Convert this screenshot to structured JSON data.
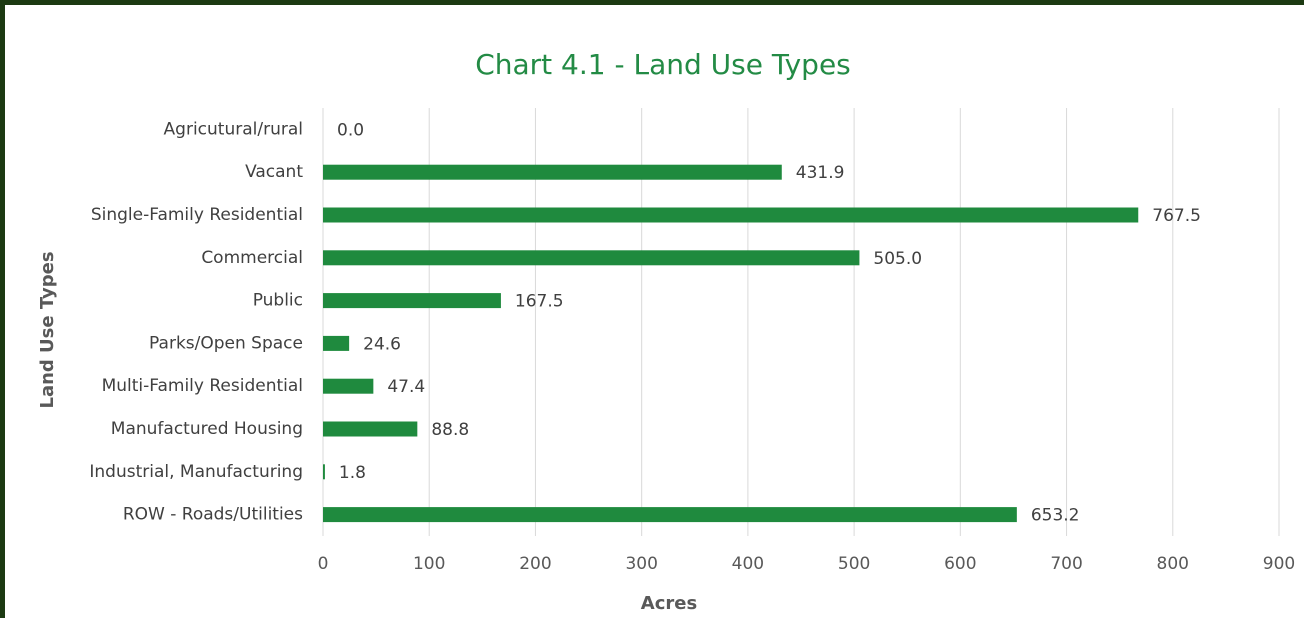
{
  "chart_data": {
    "type": "bar",
    "orientation": "horizontal",
    "title": "Chart 4.1 - Land Use Types",
    "xlabel": "Acres",
    "ylabel": "Land Use Types",
    "categories": [
      "Agricutural/rural",
      "Vacant",
      "Single-Family Residential",
      "Commercial",
      "Public",
      "Parks/Open Space",
      "Multi-Family Residential",
      "Manufactured Housing",
      "Industrial, Manufacturing",
      "ROW - Roads/Utilities"
    ],
    "values": [
      0,
      431.9,
      767.5,
      505,
      167.5,
      24.6,
      47.4,
      88.8,
      1.8,
      653.2
    ],
    "value_labels": [
      "0.0",
      "431.9",
      "767.5",
      "505.0",
      "167.5",
      "24.6",
      "47.4",
      "88.8",
      "1.8",
      "653.2"
    ],
    "color": "#1f8a3e",
    "xlim": [
      0,
      900
    ],
    "xticks": [
      0,
      100,
      200,
      300,
      400,
      500,
      600,
      700,
      800,
      900
    ],
    "grid": true
  }
}
